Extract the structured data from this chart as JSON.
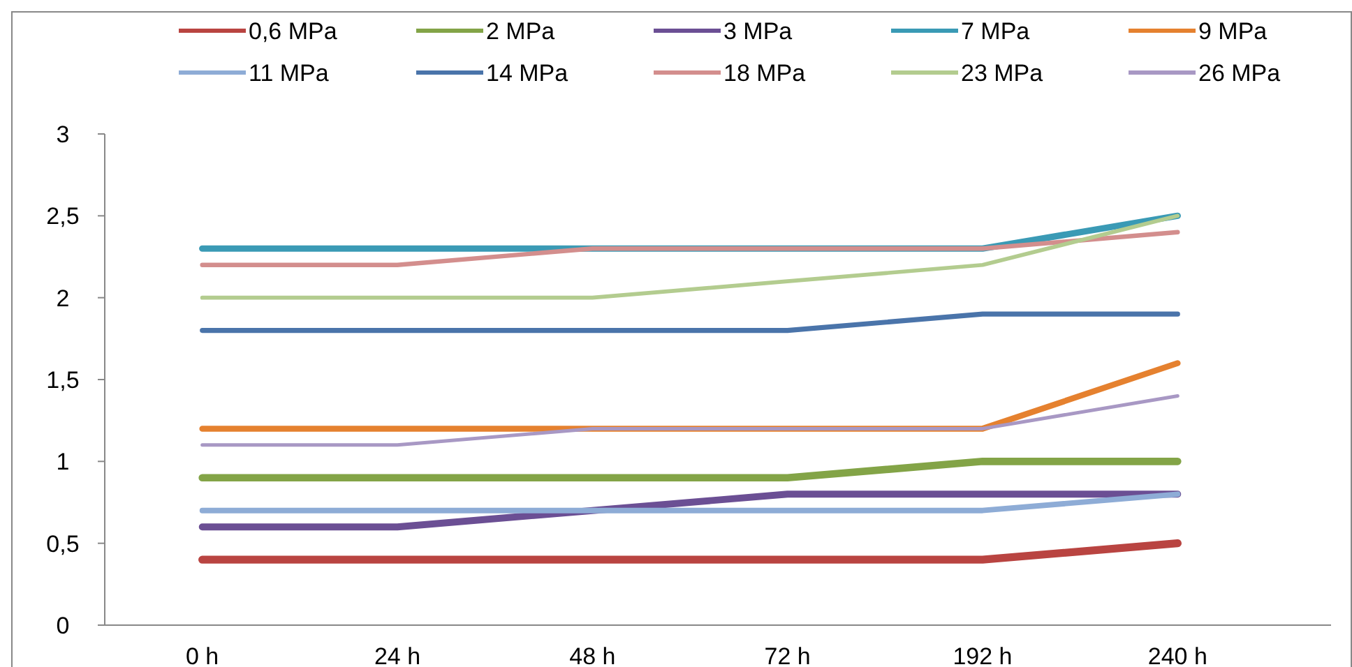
{
  "chart_data": {
    "type": "line",
    "categories": [
      "0 h",
      "24 h",
      "48 h",
      "72 h",
      "192 h",
      "240 h"
    ],
    "ylim": [
      0,
      3
    ],
    "yticks": [
      0,
      {
        "value": 0.5,
        "label": "0,5"
      },
      1,
      {
        "value": 1.5,
        "label": "1,5"
      },
      2,
      {
        "value": 2.5,
        "label": "2,5"
      },
      3
    ],
    "grid": false,
    "legend": "top",
    "marker": "none",
    "line_style": "solid",
    "series": [
      {
        "name": "0,6 MPa",
        "color": "#b94441",
        "values": [
          0.4,
          0.4,
          0.4,
          0.4,
          0.4,
          0.5
        ]
      },
      {
        "name": "2 MPa",
        "color": "#83a447",
        "values": [
          0.9,
          0.9,
          0.9,
          0.9,
          1.0,
          1.0
        ]
      },
      {
        "name": "3 MPa",
        "color": "#6b4f94",
        "values": [
          0.6,
          0.6,
          0.7,
          0.8,
          0.8,
          0.8
        ]
      },
      {
        "name": "7 MPa",
        "color": "#3a9ab5",
        "values": [
          2.3,
          2.3,
          2.3,
          2.3,
          2.3,
          2.5
        ]
      },
      {
        "name": "9 MPa",
        "color": "#e5812f",
        "values": [
          1.2,
          1.2,
          1.2,
          1.2,
          1.2,
          1.6
        ]
      },
      {
        "name": "11 MPa",
        "color": "#8eacd6",
        "values": [
          0.7,
          0.7,
          0.7,
          0.7,
          0.7,
          0.8
        ]
      },
      {
        "name": "14 MPa",
        "color": "#4a74aa",
        "values": [
          1.8,
          1.8,
          1.8,
          1.8,
          1.9,
          1.9
        ]
      },
      {
        "name": "18 MPa",
        "color": "#d38e8d",
        "values": [
          2.2,
          2.2,
          2.3,
          2.3,
          2.3,
          2.4
        ]
      },
      {
        "name": "23 MPa",
        "color": "#b3cc8f",
        "values": [
          2.0,
          2.0,
          2.0,
          2.1,
          2.2,
          2.5
        ]
      },
      {
        "name": "26 MPa",
        "color": "#a898c4",
        "values": [
          1.1,
          1.1,
          1.2,
          1.2,
          1.2,
          1.4
        ]
      }
    ]
  }
}
